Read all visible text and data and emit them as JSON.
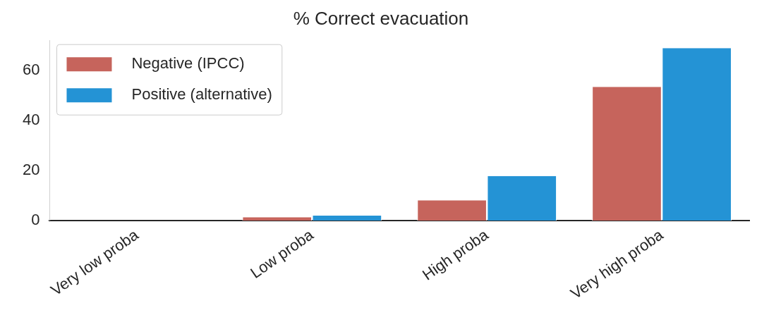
{
  "chart_data": {
    "type": "bar",
    "title": "% Correct evacuation",
    "categories": [
      "Very low proba",
      "Low proba",
      "High proba",
      "Very high proba"
    ],
    "series": [
      {
        "name": "Negative (IPCC)",
        "color": "#c6645c",
        "values": [
          0,
          1.3,
          8.1,
          53.4
        ]
      },
      {
        "name": "Positive (alternative)",
        "color": "#2493d5",
        "values": [
          0,
          2.0,
          17.8,
          68.9
        ]
      }
    ],
    "ylim": [
      0,
      72
    ],
    "yticks": [
      0,
      20,
      40,
      60
    ],
    "grid": false,
    "legend": "top left"
  }
}
